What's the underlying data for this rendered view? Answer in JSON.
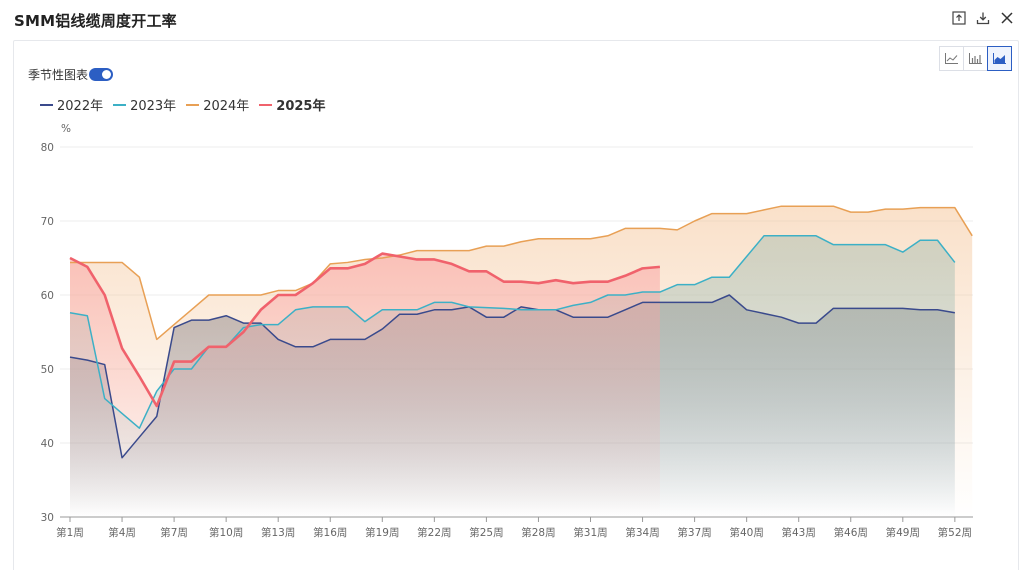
{
  "header": {
    "title": "SMM铝线缆周度开工率",
    "icons": [
      "export-icon",
      "download-icon",
      "close-icon"
    ]
  },
  "chart_type_buttons": [
    "line-chart-icon",
    "bar-chart-icon",
    "area-chart-icon"
  ],
  "seasonal": {
    "label": "季节性图表",
    "enabled": true
  },
  "chart_data": {
    "type": "area",
    "unit": "%",
    "ylim": [
      30,
      80
    ],
    "yticks": [
      30,
      40,
      50,
      60,
      70,
      80
    ],
    "grid": true,
    "legend_placement": "top-left",
    "x_labels": [
      "第1周",
      "第4周",
      "第7周",
      "第10周",
      "第13周",
      "第16周",
      "第19周",
      "第22周",
      "第25周",
      "第28周",
      "第31周",
      "第34周",
      "第37周",
      "第40周",
      "第43周",
      "第46周",
      "第49周",
      "第52周"
    ],
    "series": [
      {
        "name": "2022年",
        "color": "#3a4a8c",
        "fill_color": "#55607a",
        "bold": false,
        "values": [
          51.6,
          51.2,
          50.6,
          38.0,
          40.8,
          43.6,
          55.6,
          56.6,
          56.6,
          57.2,
          56.2,
          56.2,
          54.0,
          53.0,
          53.0,
          54.0,
          54.0,
          54.0,
          55.4,
          57.4,
          57.4,
          58.0,
          58.0,
          58.4,
          57.0,
          57.0,
          58.4,
          58.0,
          58.0,
          57.0,
          57.0,
          57.0,
          58.0,
          59.0,
          59.0,
          59.0,
          59.0,
          59.0,
          60.0,
          58.0,
          57.5,
          57.0,
          56.2,
          56.2,
          58.2,
          58.2,
          58.2,
          58.2,
          58.2,
          58.0,
          58.0,
          57.6
        ]
      },
      {
        "name": "2023年",
        "color": "#3cb0c6",
        "fill_color": "#6db8c4",
        "bold": false,
        "values": [
          57.6,
          57.2,
          46.0,
          44.0,
          42.0,
          47.0,
          50.0,
          50.0,
          53.0,
          53.0,
          55.6,
          56.0,
          56.0,
          58.0,
          58.4,
          58.4,
          58.4,
          56.4,
          58.0,
          58.0,
          58.0,
          59.0,
          59.0,
          58.4,
          58.3,
          58.2,
          58.0,
          58.0,
          58.0,
          58.6,
          59.0,
          60.0,
          60.0,
          60.4,
          60.4,
          61.4,
          61.4,
          62.4,
          62.4,
          65.2,
          68.0,
          68.0,
          68.0,
          68.0,
          66.8,
          66.8,
          66.8,
          66.8,
          65.8,
          67.4,
          67.4,
          64.4
        ]
      },
      {
        "name": "2024年",
        "color": "#e8a055",
        "fill_color": "#f5c89e",
        "bold": false,
        "values": [
          64.4,
          64.4,
          64.4,
          64.4,
          62.4,
          54.0,
          56.0,
          58.0,
          60.0,
          60.0,
          60.0,
          60.0,
          60.6,
          60.6,
          61.6,
          64.2,
          64.4,
          64.8,
          65.0,
          65.4,
          66.0,
          66.0,
          66.0,
          66.0,
          66.6,
          66.6,
          67.2,
          67.6,
          67.6,
          67.6,
          67.6,
          68.0,
          69.0,
          69.0,
          69.0,
          68.8,
          70.0,
          71.0,
          71.0,
          71.0,
          71.5,
          72.0,
          72.0,
          72.0,
          72.0,
          71.2,
          71.2,
          71.6,
          71.6,
          71.8,
          71.8,
          71.8,
          68.0
        ]
      },
      {
        "name": "2025年",
        "color": "#f0626c",
        "fill_color": "#f9a3a3",
        "bold": true,
        "values": [
          65.0,
          63.8,
          60.0,
          52.8,
          49.0,
          45.0,
          51.0,
          51.0,
          53.0,
          53.0,
          55.0,
          58.0,
          60.0,
          60.0,
          61.6,
          63.6,
          63.6,
          64.2,
          65.6,
          65.2,
          64.8,
          64.8,
          64.2,
          63.2,
          63.2,
          61.8,
          61.8,
          61.6,
          62.0,
          61.6,
          61.8,
          61.8,
          62.6,
          63.6,
          63.8
        ]
      }
    ]
  }
}
